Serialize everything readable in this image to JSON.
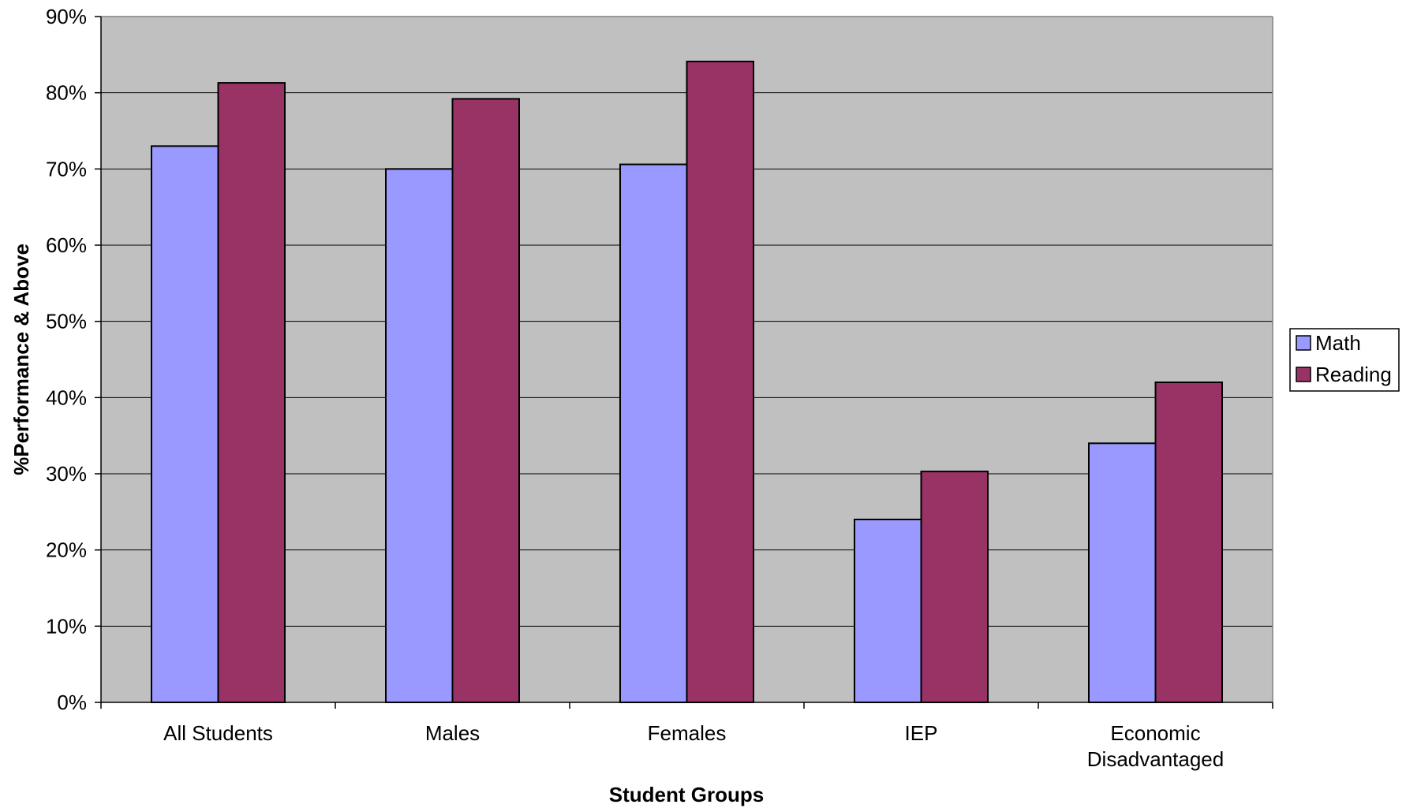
{
  "chart_data": {
    "type": "bar",
    "title": "",
    "xlabel": "Student Groups",
    "ylabel": "%Performance & Above",
    "categories": [
      [
        "All Students"
      ],
      [
        "Males"
      ],
      [
        "Females"
      ],
      [
        "IEP"
      ],
      [
        "Economic",
        "Disadvantaged"
      ]
    ],
    "series": [
      {
        "name": "Math",
        "color": "#9999FF",
        "values": [
          73,
          70,
          70.6,
          24,
          34
        ]
      },
      {
        "name": "Reading",
        "color": "#993366",
        "values": [
          81.3,
          79.2,
          84.1,
          30.3,
          42
        ]
      }
    ],
    "ylim": [
      0,
      90
    ],
    "y_ticks": [
      "0%",
      "10%",
      "20%",
      "30%",
      "40%",
      "50%",
      "60%",
      "70%",
      "80%",
      "90%"
    ],
    "grid": true,
    "plot_background": "#C0C0C0",
    "legend_position": "right"
  }
}
